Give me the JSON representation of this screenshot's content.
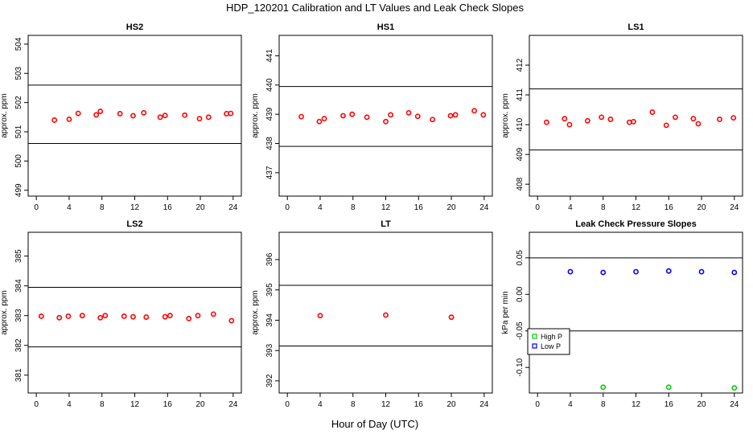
{
  "figure": {
    "title": "HDP_120201  Calibration and LT Values and Leak Check Slopes",
    "xlabel": "Hour of Day (UTC)"
  },
  "colors": {
    "calibration": "#ff0000",
    "high_p": "#00cc00",
    "low_p": "#0000ff",
    "line": "#000000"
  },
  "chart_data": [
    {
      "type": "scatter",
      "title": "HS2",
      "ylabel": "approx. ppm",
      "xlim": [
        -1,
        25
      ],
      "ylim": [
        498.8,
        504.3
      ],
      "xticks": [
        0,
        4,
        8,
        12,
        16,
        20,
        24
      ],
      "yticks": [
        499,
        500,
        501,
        502,
        503,
        504
      ],
      "hlines": [
        502.6,
        500.6
      ],
      "series": [
        {
          "x": [
            2.2,
            4,
            5.1,
            7.3,
            7.8,
            10.2,
            11.8,
            13.1,
            15.1,
            15.7,
            18.1,
            19.9,
            21,
            23.2,
            23.7
          ],
          "y": [
            501.4,
            501.43,
            501.63,
            501.58,
            501.7,
            501.62,
            501.55,
            501.65,
            501.5,
            501.56,
            501.57,
            501.45,
            501.5,
            501.62,
            501.63
          ]
        }
      ]
    },
    {
      "type": "scatter",
      "title": "HS1",
      "ylabel": "approx. ppm",
      "xlim": [
        -1,
        25
      ],
      "ylim": [
        436.2,
        441.7
      ],
      "xticks": [
        0,
        4,
        8,
        12,
        16,
        20,
        24
      ],
      "yticks": [
        437,
        438,
        439,
        440,
        441
      ],
      "hlines": [
        439.95,
        437.9
      ],
      "series": [
        {
          "x": [
            1.7,
            3.9,
            4.5,
            6.8,
            7.9,
            9.7,
            12,
            12.6,
            14.8,
            15.9,
            17.7,
            19.9,
            20.5,
            22.8,
            23.9
          ],
          "y": [
            438.92,
            438.75,
            438.85,
            438.95,
            439.0,
            438.9,
            438.75,
            438.98,
            439.05,
            438.93,
            438.82,
            438.95,
            438.98,
            439.12,
            438.98
          ]
        }
      ]
    },
    {
      "type": "scatter",
      "title": "LS1",
      "ylabel": "approx. ppm",
      "xlim": [
        -1,
        25
      ],
      "ylim": [
        407.6,
        413.0
      ],
      "xticks": [
        0,
        4,
        8,
        12,
        16,
        20,
        24
      ],
      "yticks": [
        408,
        409,
        410,
        411,
        412
      ],
      "hlines": [
        411.2,
        409.15
      ],
      "series": [
        {
          "x": [
            1.1,
            3.3,
            3.9,
            6.1,
            7.8,
            8.9,
            11.2,
            11.7,
            14,
            15.7,
            16.8,
            19,
            19.6,
            22.2,
            23.9
          ],
          "y": [
            410.08,
            410.2,
            410.0,
            410.13,
            410.25,
            410.18,
            410.08,
            410.1,
            410.42,
            409.98,
            410.25,
            410.2,
            410.03,
            410.18,
            410.23
          ]
        }
      ]
    },
    {
      "type": "scatter",
      "title": "LS2",
      "ylabel": "approx. ppm",
      "xlim": [
        -1,
        25
      ],
      "ylim": [
        380.4,
        385.8
      ],
      "xticks": [
        0,
        4,
        8,
        12,
        16,
        20,
        24
      ],
      "yticks": [
        381,
        382,
        383,
        384,
        385
      ],
      "hlines": [
        383.95,
        381.95
      ],
      "series": [
        {
          "x": [
            0.6,
            2.8,
            3.9,
            5.6,
            7.8,
            8.4,
            10.7,
            11.8,
            13.4,
            15.7,
            16.3,
            18.6,
            19.7,
            21.6,
            23.8
          ],
          "y": [
            382.98,
            382.93,
            382.98,
            383.0,
            382.93,
            383.0,
            382.98,
            382.96,
            382.95,
            382.96,
            383.0,
            382.9,
            383.0,
            383.05,
            382.83
          ]
        }
      ]
    },
    {
      "type": "scatter",
      "title": "LT",
      "ylabel": "approx. ppm",
      "xlim": [
        -1,
        25
      ],
      "ylim": [
        391.6,
        396.9
      ],
      "xticks": [
        0,
        4,
        8,
        12,
        16,
        20,
        24
      ],
      "yticks": [
        392,
        393,
        394,
        395,
        396
      ],
      "hlines": [
        395.15,
        393.15
      ],
      "series": [
        {
          "x": [
            4,
            12,
            20
          ],
          "y": [
            394.15,
            394.17,
            394.1
          ]
        }
      ]
    },
    {
      "type": "scatter",
      "title": "Leak Check Pressure Slopes",
      "ylabel": "kPa per min",
      "xlim": [
        -1,
        25
      ],
      "ylim": [
        -0.135,
        0.085
      ],
      "xticks": [
        0,
        4,
        8,
        12,
        16,
        20,
        24
      ],
      "yticks": [
        -0.1,
        -0.05,
        0.0,
        0.05
      ],
      "ytick_labels": [
        "-0.10",
        "-0.05",
        "0.00",
        "0.05"
      ],
      "hlines": [
        0.05,
        -0.05
      ],
      "legend": {
        "position": "left",
        "entries": [
          "High P",
          "Low P"
        ]
      },
      "series": [
        {
          "name": "High P",
          "color": "#00cc00",
          "x": [
            8,
            16,
            24
          ],
          "y": [
            -0.127,
            -0.127,
            -0.128
          ]
        },
        {
          "name": "Low P",
          "color": "#0000ff",
          "x": [
            4,
            8,
            12,
            16,
            20,
            24
          ],
          "y": [
            0.031,
            0.03,
            0.031,
            0.032,
            0.031,
            0.03
          ]
        }
      ]
    }
  ]
}
